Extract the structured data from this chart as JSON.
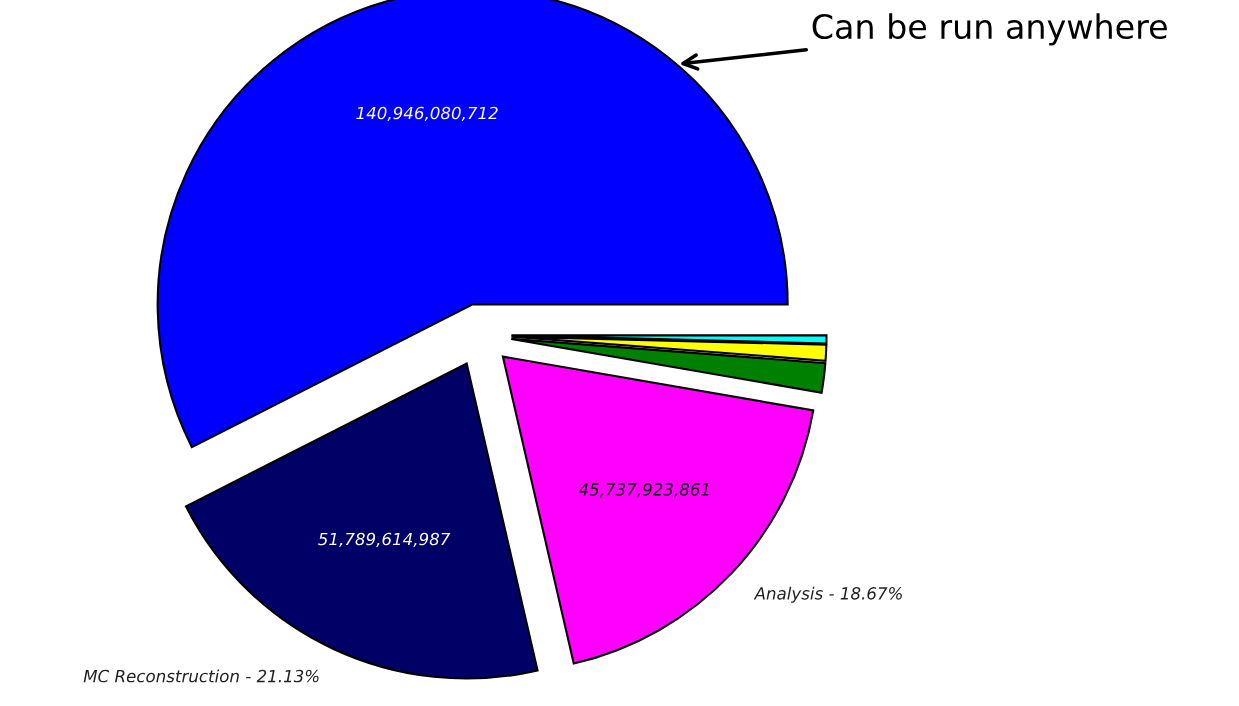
{
  "chart_data": {
    "type": "pie",
    "categories": [
      null,
      "MC Reconstruction - 21.13%",
      "Analysis - 18.67%",
      null,
      null,
      null
    ],
    "values": [
      140946080712,
      51789614987,
      45737923861,
      3700000000,
      2000000000,
      1000000000
    ],
    "value_labels": [
      "140,946,080,712",
      "51,789,614,987",
      "45,737,923,861",
      null,
      null,
      null
    ],
    "colors": [
      "#0000ff",
      "#000066",
      "#ff00ff",
      "#008000",
      "#ffff00",
      "#00ffff"
    ],
    "annotations": [
      "Can be run anywhere"
    ],
    "legend": false
  }
}
